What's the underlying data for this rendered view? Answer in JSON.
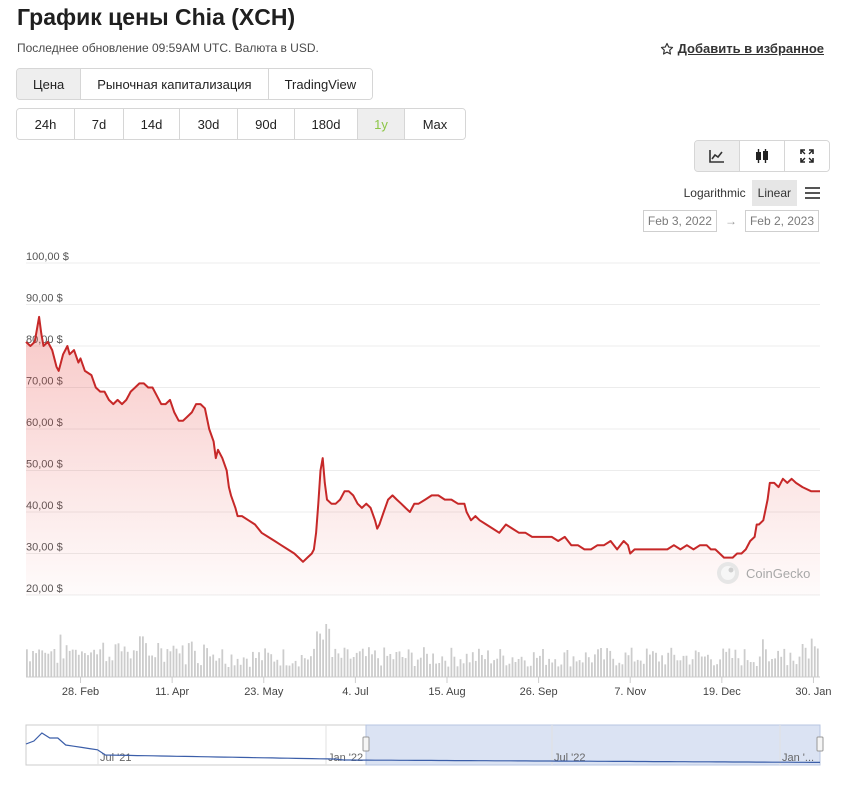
{
  "header": {
    "title": "График цены Chia (XCH)",
    "subtitle": "Последнее обновление 09:59AM UTC. Валюта в USD.",
    "favorite_label": "Добавить в избранное"
  },
  "tabs": [
    {
      "label": "Цена",
      "active": true
    },
    {
      "label": "Рыночная капитализация",
      "active": false
    },
    {
      "label": "TradingView",
      "active": false
    }
  ],
  "ranges": [
    {
      "label": "24h",
      "active": false
    },
    {
      "label": "7d",
      "active": false
    },
    {
      "label": "14d",
      "active": false
    },
    {
      "label": "30d",
      "active": false
    },
    {
      "label": "90d",
      "active": false
    },
    {
      "label": "180d",
      "active": false
    },
    {
      "label": "1y",
      "active": true
    },
    {
      "label": "Max",
      "active": false
    }
  ],
  "chart_type_buttons": [
    {
      "icon": "line-chart-icon",
      "active": true
    },
    {
      "icon": "candlestick-icon",
      "active": false
    },
    {
      "icon": "fullscreen-icon",
      "active": false
    }
  ],
  "scale": {
    "logarithmic_label": "Logarithmic",
    "linear_label": "Linear",
    "selected": "Linear"
  },
  "date_range": {
    "from": "Feb 3, 2022",
    "to": "Feb 2, 2023"
  },
  "watermark": "CoinGecko",
  "colors": {
    "line": "#c62828",
    "volume": "#cccccc",
    "navigator_line": "#3b5ea9",
    "navigator_fill": "#dbe3f3",
    "active_range": "#8dc647"
  },
  "chart_data": {
    "type": "line",
    "title": "",
    "xlabel": "",
    "ylabel": "",
    "ylim": [
      20,
      100
    ],
    "y_ticks": [
      "20,00 $",
      "30,00 $",
      "40,00 $",
      "50,00 $",
      "60,00 $",
      "70,00 $",
      "80,00 $",
      "90,00 $",
      "100,00 $"
    ],
    "y_tick_values": [
      20,
      30,
      40,
      50,
      60,
      70,
      80,
      90,
      100
    ],
    "x_ticks": [
      "28. Feb",
      "11. Apr",
      "23. May",
      "4. Jul",
      "15. Aug",
      "26. Sep",
      "7. Nov",
      "19. Dec",
      "30. Jan"
    ],
    "x_tick_days": [
      25,
      67,
      109,
      151,
      193,
      235,
      277,
      319,
      361
    ],
    "x_range_days": [
      0,
      364
    ],
    "price": [
      [
        0,
        81
      ],
      [
        2,
        80
      ],
      [
        4,
        81
      ],
      [
        5,
        84
      ],
      [
        6,
        87
      ],
      [
        7,
        83
      ],
      [
        8,
        80
      ],
      [
        10,
        81
      ],
      [
        12,
        79
      ],
      [
        14,
        75
      ],
      [
        15,
        74
      ],
      [
        16,
        76
      ],
      [
        17,
        78
      ],
      [
        18,
        79
      ],
      [
        19,
        80
      ],
      [
        20,
        78
      ],
      [
        22,
        79
      ],
      [
        24,
        76
      ],
      [
        25,
        77
      ],
      [
        27,
        74
      ],
      [
        30,
        73
      ],
      [
        32,
        70
      ],
      [
        34,
        69
      ],
      [
        36,
        69
      ],
      [
        38,
        67
      ],
      [
        40,
        66
      ],
      [
        42,
        67
      ],
      [
        44,
        66
      ],
      [
        46,
        67
      ],
      [
        48,
        69
      ],
      [
        50,
        70
      ],
      [
        52,
        71
      ],
      [
        54,
        71
      ],
      [
        56,
        70
      ],
      [
        58,
        70
      ],
      [
        60,
        68
      ],
      [
        62,
        66
      ],
      [
        64,
        66
      ],
      [
        66,
        67
      ],
      [
        68,
        64
      ],
      [
        70,
        62
      ],
      [
        72,
        62
      ],
      [
        74,
        63
      ],
      [
        76,
        64
      ],
      [
        78,
        66
      ],
      [
        80,
        66
      ],
      [
        82,
        65
      ],
      [
        84,
        60
      ],
      [
        86,
        57
      ],
      [
        87,
        53
      ],
      [
        88,
        55
      ],
      [
        90,
        53
      ],
      [
        92,
        50
      ],
      [
        93,
        46
      ],
      [
        94,
        44
      ],
      [
        96,
        41
      ],
      [
        97,
        39
      ],
      [
        99,
        39
      ],
      [
        102,
        38
      ],
      [
        105,
        37
      ],
      [
        108,
        35
      ],
      [
        111,
        34
      ],
      [
        114,
        33
      ],
      [
        117,
        32
      ],
      [
        120,
        31
      ],
      [
        123,
        30
      ],
      [
        125,
        29
      ],
      [
        127,
        28
      ],
      [
        129,
        29
      ],
      [
        131,
        30
      ],
      [
        132,
        31
      ],
      [
        133,
        35
      ],
      [
        134,
        42
      ],
      [
        135,
        50
      ],
      [
        136,
        53
      ],
      [
        137,
        47
      ],
      [
        138,
        43
      ],
      [
        140,
        42
      ],
      [
        142,
        42
      ],
      [
        144,
        43
      ],
      [
        146,
        45
      ],
      [
        148,
        45
      ],
      [
        150,
        44
      ],
      [
        152,
        42
      ],
      [
        154,
        41
      ],
      [
        156,
        42
      ],
      [
        158,
        41
      ],
      [
        160,
        38
      ],
      [
        161,
        36
      ],
      [
        162,
        37
      ],
      [
        164,
        40
      ],
      [
        166,
        43
      ],
      [
        168,
        44
      ],
      [
        170,
        43
      ],
      [
        172,
        42
      ],
      [
        174,
        41
      ],
      [
        176,
        40
      ],
      [
        178,
        42
      ],
      [
        180,
        42
      ],
      [
        183,
        43
      ],
      [
        186,
        44
      ],
      [
        189,
        44
      ],
      [
        192,
        43
      ],
      [
        195,
        43
      ],
      [
        198,
        42
      ],
      [
        201,
        42
      ],
      [
        202,
        40
      ],
      [
        204,
        38
      ],
      [
        206,
        39
      ],
      [
        208,
        38
      ],
      [
        211,
        37
      ],
      [
        214,
        36
      ],
      [
        217,
        35
      ],
      [
        220,
        37
      ],
      [
        223,
        36
      ],
      [
        226,
        35
      ],
      [
        229,
        35
      ],
      [
        232,
        34
      ],
      [
        235,
        34
      ],
      [
        238,
        34
      ],
      [
        241,
        34
      ],
      [
        244,
        33
      ],
      [
        247,
        34
      ],
      [
        250,
        32
      ],
      [
        253,
        32
      ],
      [
        256,
        31
      ],
      [
        259,
        31
      ],
      [
        262,
        32
      ],
      [
        265,
        32
      ],
      [
        268,
        33
      ],
      [
        271,
        31
      ],
      [
        274,
        33
      ],
      [
        276,
        32
      ],
      [
        277,
        30
      ],
      [
        279,
        31
      ],
      [
        282,
        31
      ],
      [
        285,
        31
      ],
      [
        288,
        31
      ],
      [
        291,
        31
      ],
      [
        294,
        31
      ],
      [
        297,
        32
      ],
      [
        300,
        31
      ],
      [
        303,
        32
      ],
      [
        306,
        31
      ],
      [
        309,
        32
      ],
      [
        312,
        32
      ],
      [
        314,
        31
      ],
      [
        316,
        31
      ],
      [
        318,
        30
      ],
      [
        320,
        29
      ],
      [
        322,
        29
      ],
      [
        324,
        29
      ],
      [
        326,
        30
      ],
      [
        328,
        30
      ],
      [
        330,
        31
      ],
      [
        332,
        33
      ],
      [
        334,
        34
      ],
      [
        335,
        37
      ],
      [
        336,
        37
      ],
      [
        338,
        38
      ],
      [
        340,
        43
      ],
      [
        341,
        47
      ],
      [
        343,
        47
      ],
      [
        345,
        46
      ],
      [
        347,
        48
      ],
      [
        349,
        47
      ],
      [
        351,
        48
      ],
      [
        353,
        47
      ],
      [
        356,
        46
      ],
      [
        360,
        45
      ],
      [
        364,
        45
      ]
    ],
    "volume_series_name": "",
    "navigator": {
      "x_labels": [
        "Jul '21",
        "Jan '22",
        "Jul '22",
        "Jan '..."
      ],
      "selected_from_label": "Jan '22"
    }
  }
}
